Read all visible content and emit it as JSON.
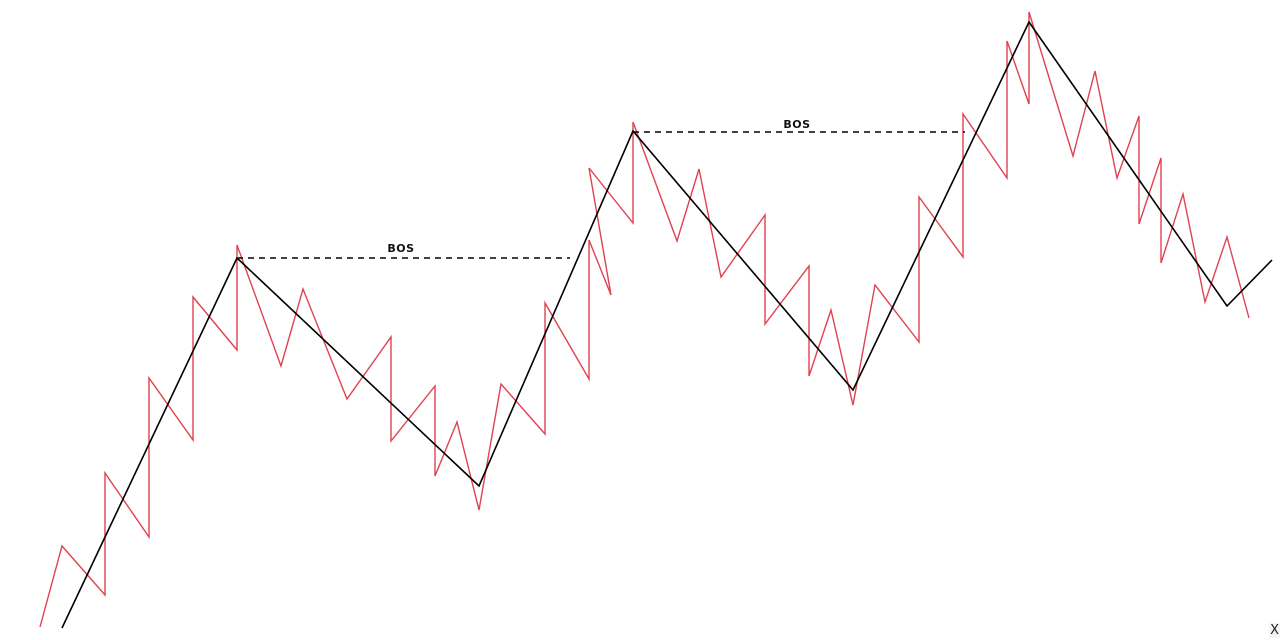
{
  "colors": {
    "background": "#ffffff",
    "price_line": "#e0424f",
    "structure_line": "#000000",
    "bos_line": "#000000"
  },
  "labels": {
    "bos_1": "BOS",
    "bos_2": "BOS",
    "corner_glyph": "X"
  }
}
